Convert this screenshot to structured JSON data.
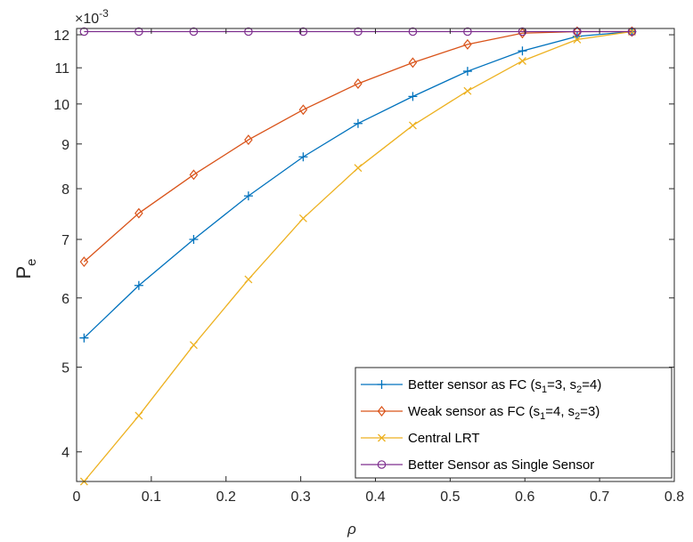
{
  "chart_data": {
    "type": "line",
    "xlabel": "ρ",
    "ylabel": "P",
    "ylabel_subscript": "e",
    "y_exponent_label": "×10",
    "y_exponent_power": "-3",
    "xlim": [
      0,
      0.8
    ],
    "ylim": [
      3.7,
      12.2
    ],
    "yscale": "log",
    "grid": false,
    "legend_position": "bottom-right",
    "x_ticks": [
      "0",
      "0.1",
      "0.2",
      "0.3",
      "0.4",
      "0.5",
      "0.6",
      "0.7",
      "0.8"
    ],
    "y_ticks": [
      "4",
      "5",
      "6",
      "7",
      "8",
      "9",
      "10",
      "11",
      "12"
    ],
    "x": [
      0.01,
      0.0833,
      0.1567,
      0.23,
      0.3033,
      0.3767,
      0.45,
      0.5233,
      0.5967,
      0.67,
      0.7433
    ],
    "series": [
      {
        "name": "Better sensor as FC (s1=3, s2=4)",
        "name_parts": [
          "Better sensor as FC (s",
          "1",
          "=3, s",
          "2",
          "=4)"
        ],
        "color": "#0072BD",
        "marker": "plus",
        "values": [
          5.4,
          6.2,
          7.0,
          7.85,
          8.7,
          9.5,
          10.2,
          10.9,
          11.5,
          11.95,
          12.1
        ]
      },
      {
        "name": "Weak sensor as FC (s1=4, s2=3)",
        "name_parts": [
          "Weak sensor as FC (s",
          "1",
          "=4, s",
          "2",
          "=3)"
        ],
        "color": "#D95319",
        "marker": "diamond",
        "values": [
          6.6,
          7.5,
          8.3,
          9.1,
          9.85,
          10.55,
          11.15,
          11.7,
          12.05,
          12.1,
          12.1
        ]
      },
      {
        "name": "Central LRT",
        "name_parts": [
          "Central LRT",
          "",
          "",
          "",
          ""
        ],
        "color": "#EDB120",
        "marker": "x",
        "values": [
          3.7,
          4.4,
          5.3,
          6.3,
          7.4,
          8.45,
          9.45,
          10.35,
          11.2,
          11.85,
          12.1
        ]
      },
      {
        "name": "Better Sensor as Single Sensor",
        "name_parts": [
          "Better Sensor as Single Sensor",
          "",
          "",
          "",
          ""
        ],
        "color": "#7E2F8E",
        "marker": "circle",
        "values": [
          12.1,
          12.1,
          12.1,
          12.1,
          12.1,
          12.1,
          12.1,
          12.1,
          12.1,
          12.1,
          12.1
        ]
      }
    ]
  }
}
